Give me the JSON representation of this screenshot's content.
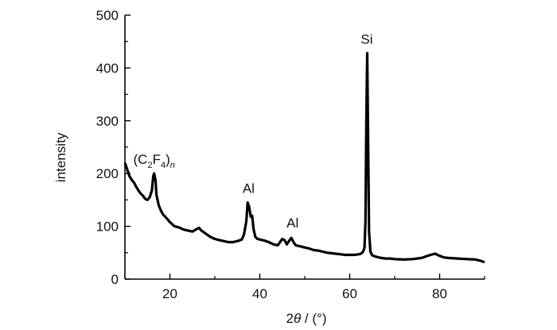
{
  "chart_data": {
    "type": "line",
    "title": "",
    "xlabel_main": "2",
    "xlabel_theta": "θ",
    "xlabel_unit": " / (°)",
    "ylabel": "intensity",
    "xlim": [
      10,
      90
    ],
    "ylim": [
      0,
      500
    ],
    "x_ticks": [
      20,
      40,
      60,
      80
    ],
    "y_ticks": [
      0,
      100,
      200,
      300,
      400,
      500
    ],
    "grid": false,
    "line_color": "#000000",
    "annotations": [
      {
        "id": "c2f4",
        "x": 16.5,
        "y": 200,
        "parts": [
          "(C",
          "2",
          "F",
          "4",
          ")",
          "n"
        ]
      },
      {
        "id": "al1",
        "x": 37.5,
        "y": 145,
        "text": "Al"
      },
      {
        "id": "al2",
        "x": 47.3,
        "y": 80,
        "text": "Al"
      },
      {
        "id": "si",
        "x": 63.8,
        "y": 428,
        "text": "Si"
      }
    ],
    "series": [
      {
        "x": [
          10,
          10.5,
          11,
          11.5,
          12,
          12.5,
          13,
          13.5,
          14,
          14.5,
          15,
          15.5,
          16,
          16.3,
          16.5,
          16.8,
          17,
          17.5,
          18,
          18.5,
          19,
          20,
          21,
          22,
          23,
          24,
          25,
          26,
          26.5,
          27,
          28,
          29,
          30,
          31,
          32,
          33,
          34,
          35,
          36,
          36.5,
          37,
          37.3,
          37.6,
          38,
          38.3,
          38.6,
          39,
          39.5,
          40,
          41,
          42,
          43,
          44,
          44.5,
          45,
          45.5,
          46,
          46.5,
          47,
          47.5,
          48,
          49,
          50,
          51,
          52,
          53,
          54,
          55,
          56,
          57,
          58,
          59,
          60,
          61,
          62,
          62.5,
          63,
          63.3,
          63.5,
          63.7,
          63.9,
          64.1,
          64.3,
          64.6,
          65,
          66,
          67,
          68,
          69,
          70,
          72,
          74,
          76,
          77,
          78,
          79,
          80,
          81,
          82,
          84,
          86,
          88,
          89,
          90
        ],
        "y": [
          220,
          208,
          195,
          188,
          183,
          175,
          168,
          162,
          158,
          152,
          150,
          155,
          168,
          195,
          200,
          188,
          160,
          140,
          130,
          122,
          118,
          108,
          100,
          98,
          94,
          92,
          90,
          95,
          97,
          92,
          86,
          80,
          76,
          74,
          72,
          70,
          70,
          72,
          75,
          85,
          110,
          145,
          138,
          118,
          120,
          95,
          80,
          76,
          75,
          73,
          70,
          66,
          64,
          70,
          76,
          74,
          66,
          72,
          78,
          70,
          64,
          62,
          60,
          58,
          55,
          54,
          52,
          50,
          49,
          48,
          47,
          46,
          46,
          46,
          47,
          48,
          52,
          60,
          110,
          300,
          428,
          250,
          90,
          52,
          45,
          42,
          40,
          39,
          39,
          38,
          37,
          38,
          40,
          43,
          46,
          48,
          44,
          41,
          40,
          39,
          38,
          37,
          35,
          32
        ]
      }
    ]
  }
}
